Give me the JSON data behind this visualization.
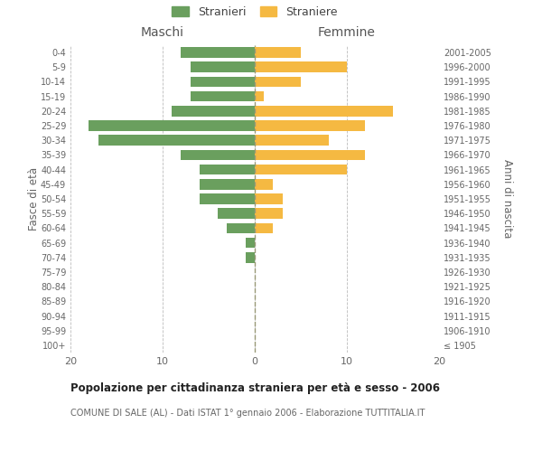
{
  "age_groups": [
    "100+",
    "95-99",
    "90-94",
    "85-89",
    "80-84",
    "75-79",
    "70-74",
    "65-69",
    "60-64",
    "55-59",
    "50-54",
    "45-49",
    "40-44",
    "35-39",
    "30-34",
    "25-29",
    "20-24",
    "15-19",
    "10-14",
    "5-9",
    "0-4"
  ],
  "birth_years": [
    "≤ 1905",
    "1906-1910",
    "1911-1915",
    "1916-1920",
    "1921-1925",
    "1926-1930",
    "1931-1935",
    "1936-1940",
    "1941-1945",
    "1946-1950",
    "1951-1955",
    "1956-1960",
    "1961-1965",
    "1966-1970",
    "1971-1975",
    "1976-1980",
    "1981-1985",
    "1986-1990",
    "1991-1995",
    "1996-2000",
    "2001-2005"
  ],
  "males": [
    0,
    0,
    0,
    0,
    0,
    0,
    1,
    1,
    3,
    4,
    6,
    6,
    6,
    8,
    17,
    18,
    9,
    7,
    7,
    7,
    8
  ],
  "females": [
    0,
    0,
    0,
    0,
    0,
    0,
    0,
    0,
    2,
    3,
    3,
    2,
    10,
    12,
    8,
    12,
    15,
    1,
    5,
    10,
    5
  ],
  "male_color": "#6a9f5e",
  "female_color": "#f5b942",
  "grid_color": "#bbbbbb",
  "title": "Popolazione per cittadinanza straniera per età e sesso - 2006",
  "subtitle": "COMUNE DI SALE (AL) - Dati ISTAT 1° gennaio 2006 - Elaborazione TUTTITALIA.IT",
  "ylabel_left": "Fasce di età",
  "ylabel_right": "Anni di nascita",
  "xlabel_left": "Maschi",
  "xlabel_right": "Femmine",
  "legend_male": "Stranieri",
  "legend_female": "Straniere",
  "xlim": 20,
  "background_color": "#ffffff"
}
